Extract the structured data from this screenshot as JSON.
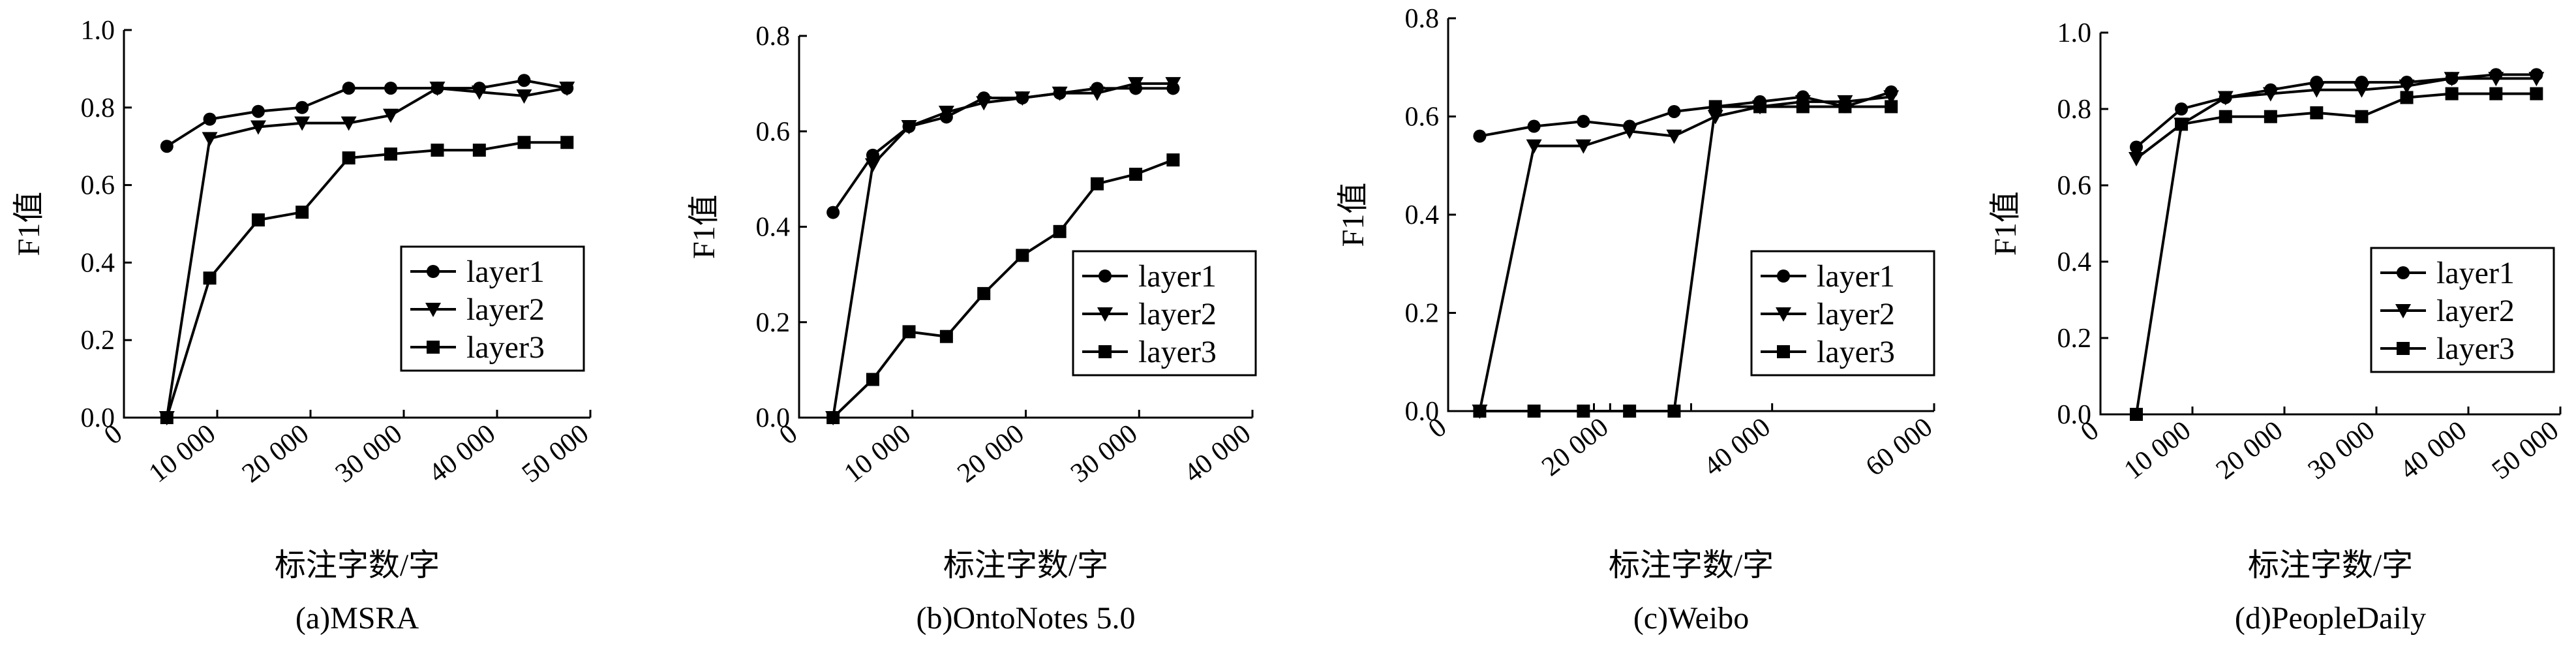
{
  "chart_data": [
    {
      "type": "line",
      "caption": "(a)MSRA",
      "xlabel": "标注字数/字",
      "ylabel": "F1值",
      "xlim": [
        0,
        50000
      ],
      "ylim": [
        0,
        1.0
      ],
      "xticks": [
        0,
        10000,
        20000,
        30000,
        40000,
        50000
      ],
      "xtick_labels": [
        "0",
        "10 000",
        "20 000",
        "30 000",
        "40 000",
        "50 000"
      ],
      "yticks": [
        0,
        0.2,
        0.4,
        0.6,
        0.8,
        1.0
      ],
      "ytick_labels": [
        "0.0",
        "0.2",
        "0.4",
        "0.6",
        "0.8",
        "1.0"
      ],
      "legend_position": "lower-right",
      "series": [
        {
          "name": "layer1",
          "marker": "circle",
          "points": [
            [
              4600,
              0.7
            ],
            [
              9200,
              0.77
            ],
            [
              14400,
              0.79
            ],
            [
              19100,
              0.8
            ],
            [
              24100,
              0.85
            ],
            [
              28600,
              0.85
            ],
            [
              33600,
              0.85
            ],
            [
              38100,
              0.85
            ],
            [
              42900,
              0.87
            ],
            [
              47500,
              0.85
            ]
          ]
        },
        {
          "name": "layer2",
          "marker": "triangle-down",
          "points": [
            [
              4600,
              0.0
            ],
            [
              9200,
              0.72
            ],
            [
              14400,
              0.75
            ],
            [
              19100,
              0.76
            ],
            [
              24100,
              0.76
            ],
            [
              28600,
              0.78
            ],
            [
              33600,
              0.85
            ],
            [
              38100,
              0.84
            ],
            [
              42900,
              0.83
            ],
            [
              47500,
              0.85
            ]
          ]
        },
        {
          "name": "layer3",
          "marker": "square",
          "points": [
            [
              4600,
              0.0
            ],
            [
              9200,
              0.36
            ],
            [
              14400,
              0.51
            ],
            [
              19100,
              0.53
            ],
            [
              24100,
              0.67
            ],
            [
              28600,
              0.68
            ],
            [
              33600,
              0.69
            ],
            [
              38100,
              0.69
            ],
            [
              42900,
              0.71
            ],
            [
              47500,
              0.71
            ]
          ]
        }
      ]
    },
    {
      "type": "line",
      "caption": "(b)OntoNotes 5.0",
      "xlabel": "标注字数/字",
      "ylabel": "F1值",
      "xlim": [
        0,
        40000
      ],
      "ylim": [
        0,
        0.8
      ],
      "xticks": [
        0,
        10000,
        20000,
        30000,
        40000
      ],
      "xtick_labels": [
        "0",
        "10 000",
        "20 000",
        "30 000",
        "40 000"
      ],
      "yticks": [
        0,
        0.2,
        0.4,
        0.6,
        0.8
      ],
      "ytick_labels": [
        "0.0",
        "0.2",
        "0.4",
        "0.6",
        "0.8"
      ],
      "legend_position": "lower-right",
      "series": [
        {
          "name": "layer1",
          "marker": "circle",
          "points": [
            [
              3000,
              0.43
            ],
            [
              6500,
              0.55
            ],
            [
              9700,
              0.61
            ],
            [
              13000,
              0.63
            ],
            [
              16300,
              0.67
            ],
            [
              19700,
              0.67
            ],
            [
              23000,
              0.68
            ],
            [
              26300,
              0.69
            ],
            [
              29700,
              0.69
            ],
            [
              33000,
              0.69
            ]
          ]
        },
        {
          "name": "layer2",
          "marker": "triangle-down",
          "points": [
            [
              3000,
              0.0
            ],
            [
              6500,
              0.53
            ],
            [
              9700,
              0.61
            ],
            [
              13000,
              0.64
            ],
            [
              16300,
              0.66
            ],
            [
              19700,
              0.67
            ],
            [
              23000,
              0.68
            ],
            [
              26300,
              0.68
            ],
            [
              29700,
              0.7
            ],
            [
              33000,
              0.7
            ]
          ]
        },
        {
          "name": "layer3",
          "marker": "square",
          "points": [
            [
              3000,
              0.0
            ],
            [
              6500,
              0.08
            ],
            [
              9700,
              0.18
            ],
            [
              13000,
              0.17
            ],
            [
              16300,
              0.26
            ],
            [
              19700,
              0.34
            ],
            [
              23000,
              0.39
            ],
            [
              26300,
              0.49
            ],
            [
              29700,
              0.51
            ],
            [
              33000,
              0.54
            ]
          ]
        }
      ]
    },
    {
      "type": "line",
      "caption": "(c)Weibo",
      "xlabel": "标注字数/字",
      "ylabel": "F1值",
      "xlim": [
        0,
        60000
      ],
      "ylim": [
        0,
        0.8
      ],
      "xticks": [
        0,
        20000,
        40000,
        60000
      ],
      "xtick_labels": [
        "0",
        "20 000",
        "40 000",
        "60 000"
      ],
      "minor_xticks": [
        18000,
        30000
      ],
      "yticks": [
        0,
        0.2,
        0.4,
        0.6,
        0.8
      ],
      "ytick_labels": [
        "0.0",
        "0.2",
        "0.4",
        "0.6",
        "0.8"
      ],
      "legend_position": "lower-right",
      "series": [
        {
          "name": "layer1",
          "marker": "circle",
          "points": [
            [
              3900,
              0.56
            ],
            [
              10600,
              0.58
            ],
            [
              16700,
              0.59
            ],
            [
              22400,
              0.58
            ],
            [
              27900,
              0.61
            ],
            [
              33000,
              0.62
            ],
            [
              38500,
              0.63
            ],
            [
              43800,
              0.64
            ],
            [
              49000,
              0.62
            ],
            [
              54700,
              0.65
            ]
          ]
        },
        {
          "name": "layer2",
          "marker": "triangle-down",
          "points": [
            [
              3900,
              0.0
            ],
            [
              10600,
              0.54
            ],
            [
              16700,
              0.54
            ],
            [
              22400,
              0.57
            ],
            [
              27900,
              0.56
            ],
            [
              33000,
              0.6
            ],
            [
              38500,
              0.62
            ],
            [
              43800,
              0.63
            ],
            [
              49000,
              0.63
            ],
            [
              54700,
              0.64
            ]
          ]
        },
        {
          "name": "layer3",
          "marker": "square",
          "points": [
            [
              3900,
              0.0
            ],
            [
              10600,
              0.0
            ],
            [
              16700,
              0.0
            ],
            [
              22400,
              0.0
            ],
            [
              27900,
              0.0
            ],
            [
              33000,
              0.62
            ],
            [
              38500,
              0.62
            ],
            [
              43800,
              0.62
            ],
            [
              49000,
              0.62
            ],
            [
              54700,
              0.62
            ]
          ]
        }
      ]
    },
    {
      "type": "line",
      "caption": "(d)PeopleDaily",
      "xlabel": "标注字数/字",
      "ylabel": "F1值",
      "xlim": [
        0,
        50000
      ],
      "ylim": [
        0,
        1.0
      ],
      "xticks": [
        0,
        10000,
        20000,
        30000,
        40000,
        50000
      ],
      "xtick_labels": [
        "0",
        "10 000",
        "20 000",
        "30 000",
        "40 000",
        "50 000"
      ],
      "yticks": [
        0,
        0.2,
        0.4,
        0.6,
        0.8,
        1.0
      ],
      "ytick_labels": [
        "0.0",
        "0.2",
        "0.4",
        "0.6",
        "0.8",
        "1.0"
      ],
      "legend_position": "lower-right",
      "series": [
        {
          "name": "layer1",
          "marker": "circle",
          "points": [
            [
              3900,
              0.7
            ],
            [
              8800,
              0.8
            ],
            [
              13600,
              0.83
            ],
            [
              18500,
              0.85
            ],
            [
              23500,
              0.87
            ],
            [
              28400,
              0.87
            ],
            [
              33300,
              0.87
            ],
            [
              38200,
              0.88
            ],
            [
              43000,
              0.89
            ],
            [
              47400,
              0.89
            ]
          ]
        },
        {
          "name": "layer2",
          "marker": "triangle-down",
          "points": [
            [
              3900,
              0.67
            ],
            [
              8800,
              0.76
            ],
            [
              13600,
              0.83
            ],
            [
              18500,
              0.84
            ],
            [
              23500,
              0.85
            ],
            [
              28400,
              0.85
            ],
            [
              33300,
              0.86
            ],
            [
              38200,
              0.88
            ],
            [
              43000,
              0.88
            ],
            [
              47400,
              0.88
            ]
          ]
        },
        {
          "name": "layer3",
          "marker": "square",
          "points": [
            [
              3900,
              0.0
            ],
            [
              8800,
              0.76
            ],
            [
              13600,
              0.78
            ],
            [
              18500,
              0.78
            ],
            [
              23500,
              0.79
            ],
            [
              28400,
              0.78
            ],
            [
              33300,
              0.83
            ],
            [
              38200,
              0.84
            ],
            [
              43000,
              0.84
            ],
            [
              47400,
              0.84
            ]
          ]
        }
      ]
    }
  ]
}
